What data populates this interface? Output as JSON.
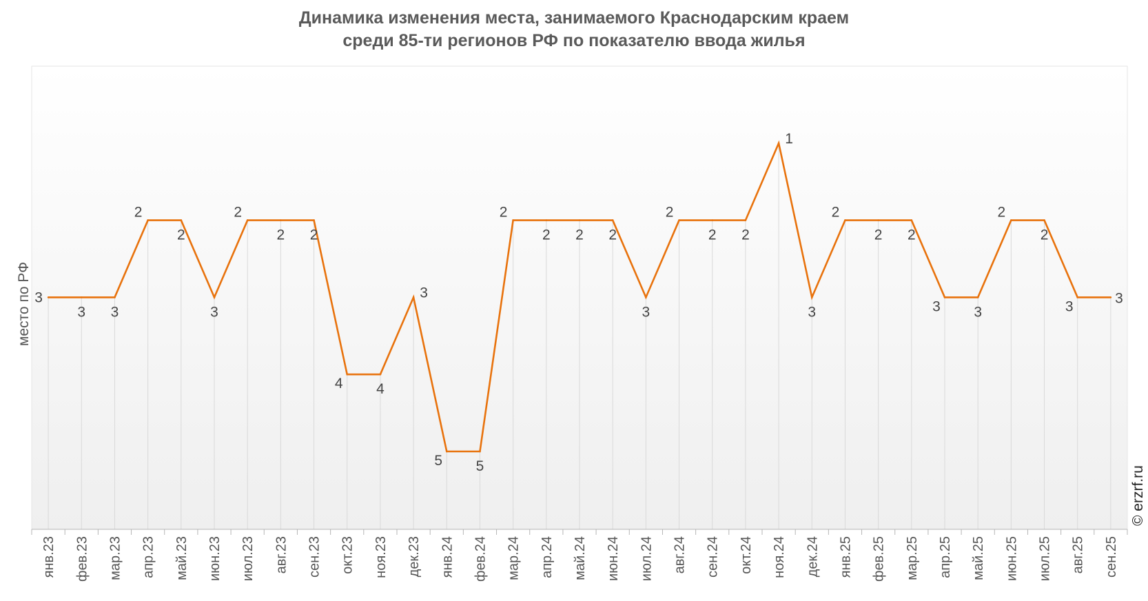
{
  "chart_data": {
    "type": "line",
    "title_lines": [
      "Динамика изменения места, занимаемого Краснодарским краем",
      "среди 85-ти регионов РФ по показателю ввода жилья"
    ],
    "xlabel": "",
    "ylabel": "место по РФ",
    "y_inverted": true,
    "ylim": [
      6,
      0
    ],
    "categories": [
      "янв.23",
      "фев.23",
      "мар.23",
      "апр.23",
      "май.23",
      "июн.23",
      "июл.23",
      "авг.23",
      "сен.23",
      "окт.23",
      "ноя.23",
      "дек.23",
      "янв.24",
      "фев.24",
      "мар.24",
      "апр.24",
      "май.24",
      "июн.24",
      "июл.24",
      "авг.24",
      "сен.24",
      "окт.24",
      "ноя.24",
      "дек.24",
      "янв.25",
      "фев.25",
      "мар.25",
      "апр.25",
      "май.25",
      "июн.25",
      "июл.25",
      "авг.25",
      "сен.25"
    ],
    "values": [
      3,
      3,
      3,
      2,
      2,
      3,
      2,
      2,
      2,
      4,
      4,
      3,
      5,
      5,
      2,
      2,
      2,
      2,
      3,
      2,
      2,
      2,
      1,
      3,
      2,
      2,
      2,
      3,
      3,
      2,
      2,
      3,
      3
    ],
    "grid": "vertical",
    "line_color": "#e8720c",
    "copyright": "© erzrf.ru"
  }
}
